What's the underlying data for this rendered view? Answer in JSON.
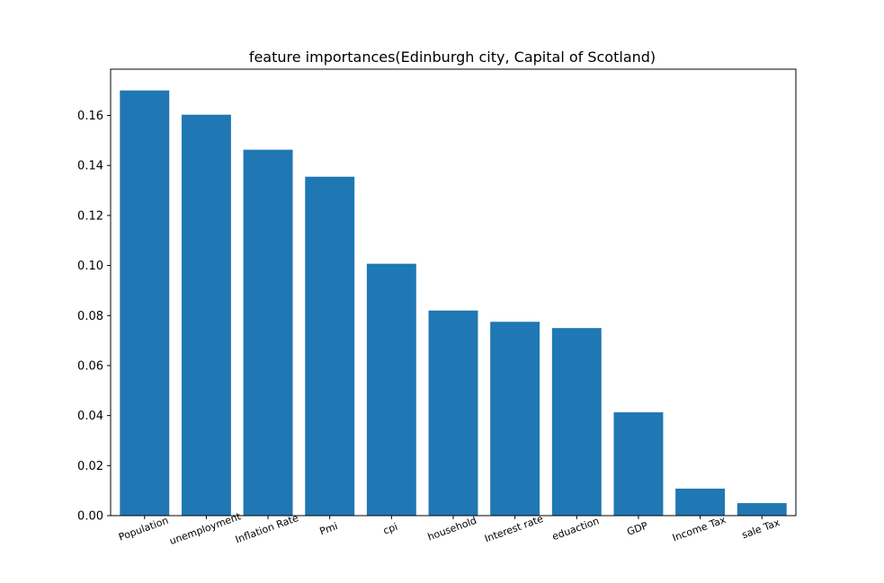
{
  "chart_data": {
    "type": "bar",
    "title": "feature importances(Edinburgh city, Capital of Scotland)",
    "xlabel": "",
    "ylabel": "",
    "categories": [
      "Population",
      "unemployment",
      "Inflation Rate",
      "Pmi",
      "cpi",
      "household",
      "Interest rate",
      "eduaction",
      "GDP",
      "Income Tax",
      "sale Tax"
    ],
    "values": [
      0.17,
      0.1603,
      0.1463,
      0.1355,
      0.1007,
      0.082,
      0.0775,
      0.075,
      0.0413,
      0.0108,
      0.005
    ],
    "ylim": [
      0,
      0.1785
    ],
    "y_ticks": [
      "0.00",
      "0.02",
      "0.04",
      "0.06",
      "0.08",
      "0.10",
      "0.12",
      "0.14",
      "0.16"
    ],
    "bar_color": "#1f77b4",
    "grid": false,
    "legend": "none"
  }
}
